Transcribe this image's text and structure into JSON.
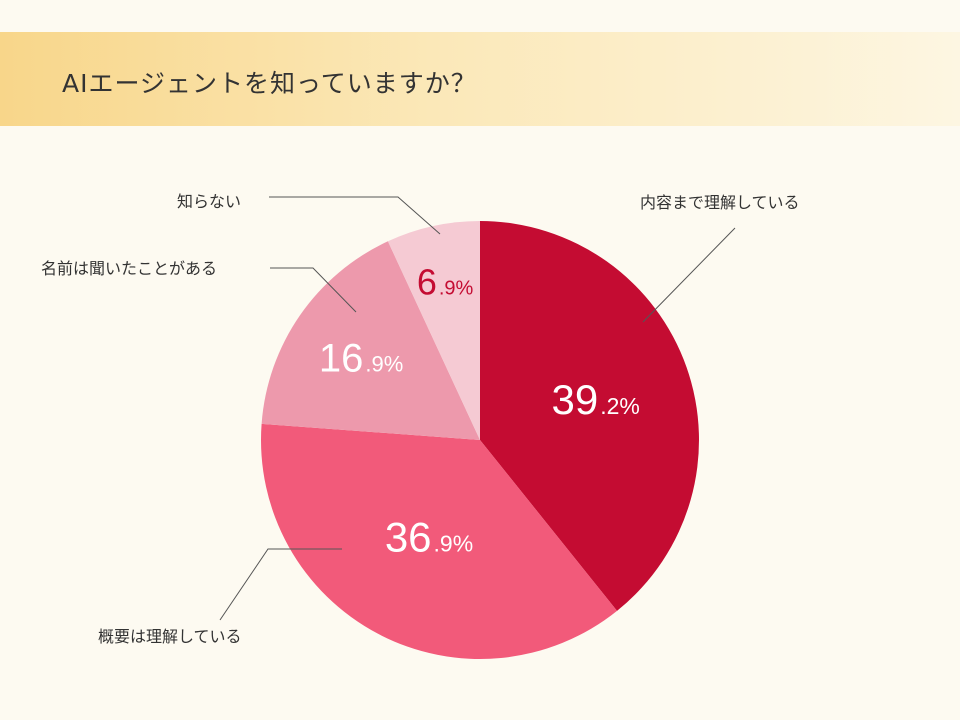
{
  "title": "AIエージェントを知っていますか？",
  "colors": {
    "background": "#fdfaf1",
    "header_gradient": [
      "#f8d68a",
      "#fdf6e2"
    ],
    "leader_line": "#555555",
    "label_text": "#333333",
    "dark_value_text": "#c40c32"
  },
  "chart_data": {
    "type": "pie",
    "start": "12 o'clock",
    "direction": "clockwise",
    "slices": [
      {
        "label": "内容まで理解している",
        "value": 39.2,
        "int": "39",
        "dec": ".2%",
        "color": "#c40c32",
        "value_text_color": "#ffffff"
      },
      {
        "label": "概要は理解している",
        "value": 36.9,
        "int": "36",
        "dec": ".9%",
        "color": "#f25a7a",
        "value_text_color": "#ffffff"
      },
      {
        "label": "名前は聞いたことがある",
        "value": 16.9,
        "int": "16",
        "dec": ".9%",
        "color": "#ed99ac",
        "value_text_color": "#ffffff"
      },
      {
        "label": "知らない",
        "value": 6.9,
        "int": "6",
        "dec": ".9%",
        "color": "#f5cad3",
        "value_text_color": "#c40c32"
      }
    ]
  }
}
